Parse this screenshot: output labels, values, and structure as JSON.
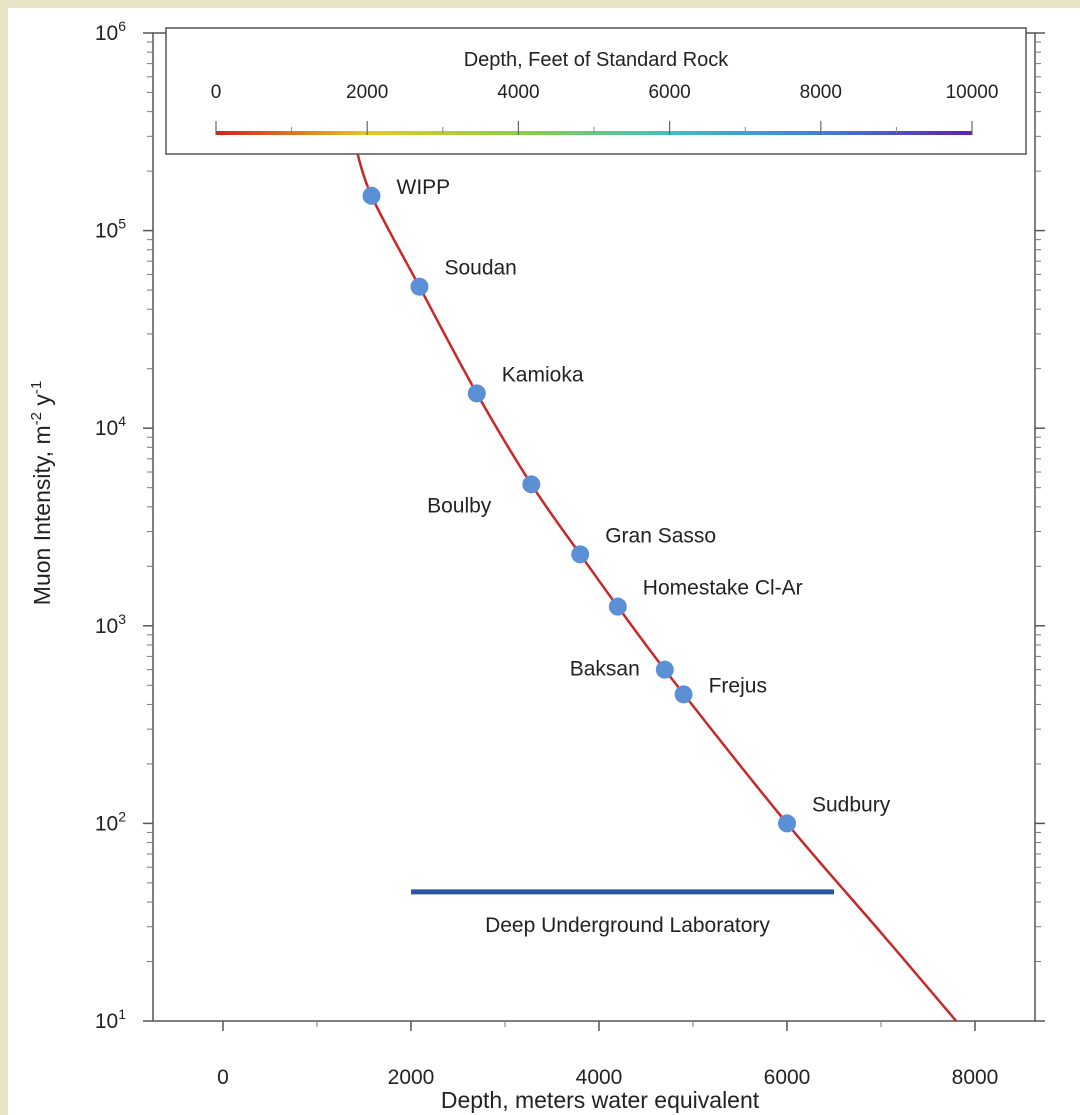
{
  "chart_data": {
    "type": "scatter",
    "xlabel": "Depth, meters water equivalent",
    "ylabel": "Muon Intensity, m-2 y-1",
    "xlim": [
      -1000,
      9000
    ],
    "ylim": [
      10,
      1000000
    ],
    "y_scale": "log",
    "grid": false,
    "x_ticks": [
      {
        "value": 0,
        "label": "0"
      },
      {
        "value": 2000,
        "label": "2000"
      },
      {
        "value": 4000,
        "label": "4000"
      },
      {
        "value": 6000,
        "label": "6000"
      },
      {
        "value": 8000,
        "label": "8000"
      }
    ],
    "y_ticks": [
      {
        "value": 10,
        "base": "10",
        "exp": "1"
      },
      {
        "value": 100,
        "base": "10",
        "exp": "2"
      },
      {
        "value": 1000,
        "base": "10",
        "exp": "3"
      },
      {
        "value": 10000,
        "base": "10",
        "exp": "4"
      },
      {
        "value": 100000,
        "base": "10",
        "exp": "5"
      },
      {
        "value": 1000000,
        "base": "10",
        "exp": "6"
      }
    ],
    "points": [
      {
        "label": "WIPP",
        "x": 1580,
        "y": 150000,
        "label_pos": "right"
      },
      {
        "label": "Soudan",
        "x": 2090,
        "y": 52000,
        "label_pos": "upper-right"
      },
      {
        "label": "Kamioka",
        "x": 2700,
        "y": 15000,
        "label_pos": "upper-right"
      },
      {
        "label": "Boulby",
        "x": 3280,
        "y": 5200,
        "label_pos": "lower-left"
      },
      {
        "label": "Gran Sasso",
        "x": 3800,
        "y": 2300,
        "label_pos": "upper-right"
      },
      {
        "label": "Homestake Cl-Ar",
        "x": 4200,
        "y": 1250,
        "label_pos": "upper-right"
      },
      {
        "label": "Baksan",
        "x": 4700,
        "y": 600,
        "label_pos": "left"
      },
      {
        "label": "Frejus",
        "x": 4900,
        "y": 450,
        "label_pos": "right"
      },
      {
        "label": "Sudbury",
        "x": 6000,
        "y": 100,
        "label_pos": "upper-right"
      }
    ],
    "curve": {
      "color": "#c8282a",
      "points": [
        [
          1400,
          280000
        ],
        [
          1580,
          150000
        ],
        [
          2090,
          52000
        ],
        [
          2700,
          15000
        ],
        [
          3280,
          5200
        ],
        [
          3800,
          2300
        ],
        [
          4200,
          1250
        ],
        [
          4800,
          520
        ],
        [
          6000,
          100
        ],
        [
          7000,
          28
        ],
        [
          7800,
          10
        ]
      ]
    },
    "point_color": "#5b8fd6",
    "band": {
      "label": "Deep Underground Laboratory",
      "x_start": 2000,
      "x_end": 6500,
      "y": 45,
      "color": "#2a56a8"
    },
    "top_axis": {
      "title": "Depth, Feet of Standard Rock",
      "ticks": [
        {
          "value": 0,
          "label": "0"
        },
        {
          "value": 2000,
          "label": "2000"
        },
        {
          "value": 4000,
          "label": "4000"
        },
        {
          "value": 6000,
          "label": "6000"
        },
        {
          "value": 8000,
          "label": "8000"
        },
        {
          "value": 10000,
          "label": "10000"
        }
      ],
      "range": [
        0,
        10000
      ],
      "gradient": [
        "#d62020",
        "#e8c820",
        "#8ad040",
        "#40c0c0",
        "#4080e0",
        "#6020b0"
      ]
    }
  }
}
